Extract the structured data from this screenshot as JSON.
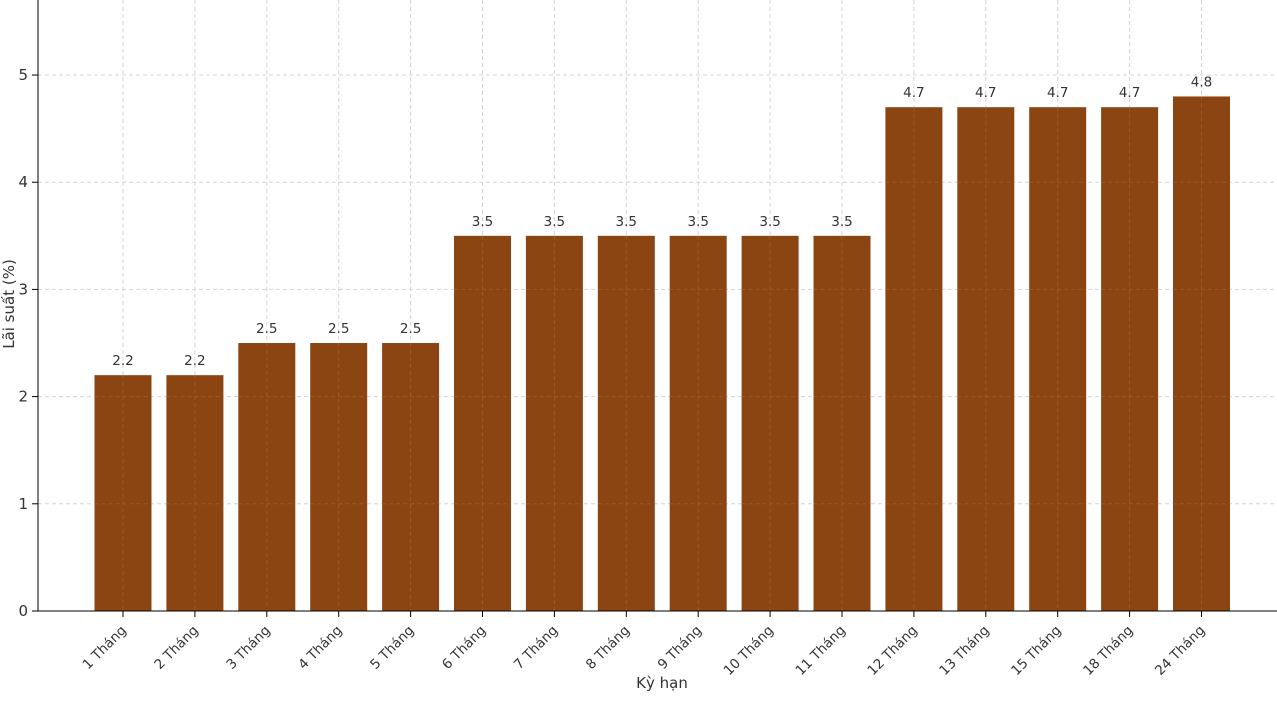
{
  "chart_data": {
    "type": "bar",
    "title": "",
    "xlabel": "Kỳ hạn",
    "ylabel": "Lãi suất (%)",
    "categories": [
      "1 Tháng",
      "2 Tháng",
      "3 Tháng",
      "4 Tháng",
      "5 Tháng",
      "6 Tháng",
      "7 Tháng",
      "8 Tháng",
      "9 Tháng",
      "10 Tháng",
      "11 Tháng",
      "12 Tháng",
      "13 Tháng",
      "15 Tháng",
      "18 Tháng",
      "24 Tháng"
    ],
    "values": [
      2.2,
      2.2,
      2.5,
      2.5,
      2.5,
      3.5,
      3.5,
      3.5,
      3.5,
      3.5,
      3.5,
      4.7,
      4.7,
      4.7,
      4.7,
      4.8
    ],
    "data_labels": [
      "2.2",
      "2.2",
      "2.5",
      "2.5",
      "2.5",
      "3.5",
      "3.5",
      "3.5",
      "3.5",
      "3.5",
      "3.5",
      "4.7",
      "4.7",
      "4.7",
      "4.7",
      "4.8"
    ],
    "yticks": [
      "0",
      "1",
      "2",
      "3",
      "4",
      "5"
    ],
    "ylim": [
      0,
      5.7
    ],
    "grid": true,
    "bar_color": "#8B4513",
    "grid_color": "#d4d4d4",
    "axis_color": "#000000",
    "text_color": "#333333"
  }
}
